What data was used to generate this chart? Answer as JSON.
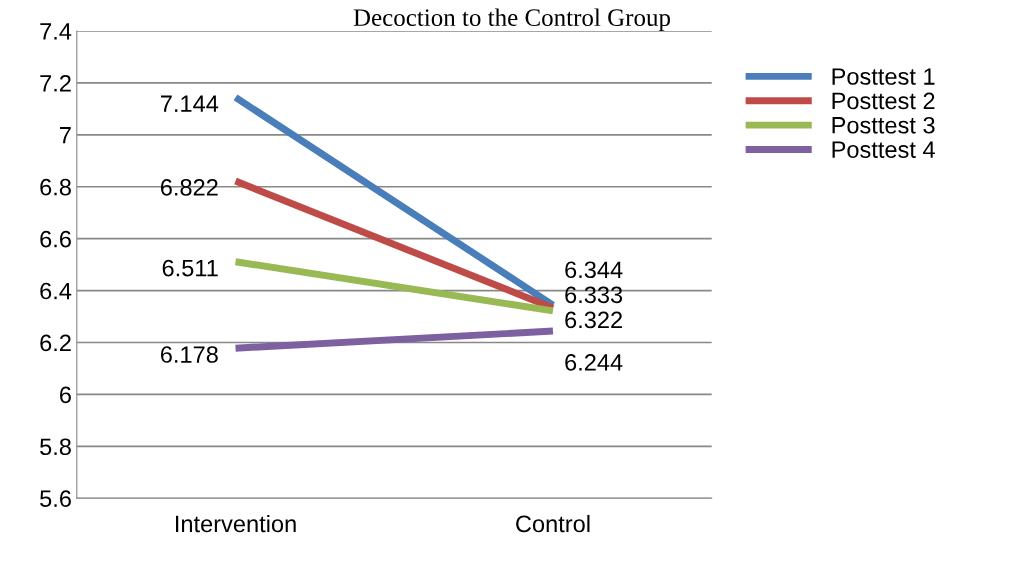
{
  "chart_data": {
    "type": "line",
    "title": "Decoction to the Control Group",
    "categories": [
      "Intervention",
      "Control"
    ],
    "series": [
      {
        "name": "Posttest 1",
        "color": "#4a7ebb",
        "values": [
          7.144,
          6.344
        ]
      },
      {
        "name": "Posttest 2",
        "color": "#be4b48",
        "values": [
          6.822,
          6.333
        ]
      },
      {
        "name": "Posttest 3",
        "color": "#98b954",
        "values": [
          6.511,
          6.322
        ]
      },
      {
        "name": "Posttest 4",
        "color": "#7d60a0",
        "values": [
          6.178,
          6.244
        ]
      }
    ],
    "ylim": [
      5.6,
      7.4
    ],
    "yticks": [
      5.6,
      5.8,
      6,
      6.2,
      6.4,
      6.6,
      6.8,
      7,
      7.2,
      7.4
    ],
    "grid": "y",
    "legend": "right",
    "data_labels": true,
    "marker": "none",
    "line_style": "solid"
  }
}
